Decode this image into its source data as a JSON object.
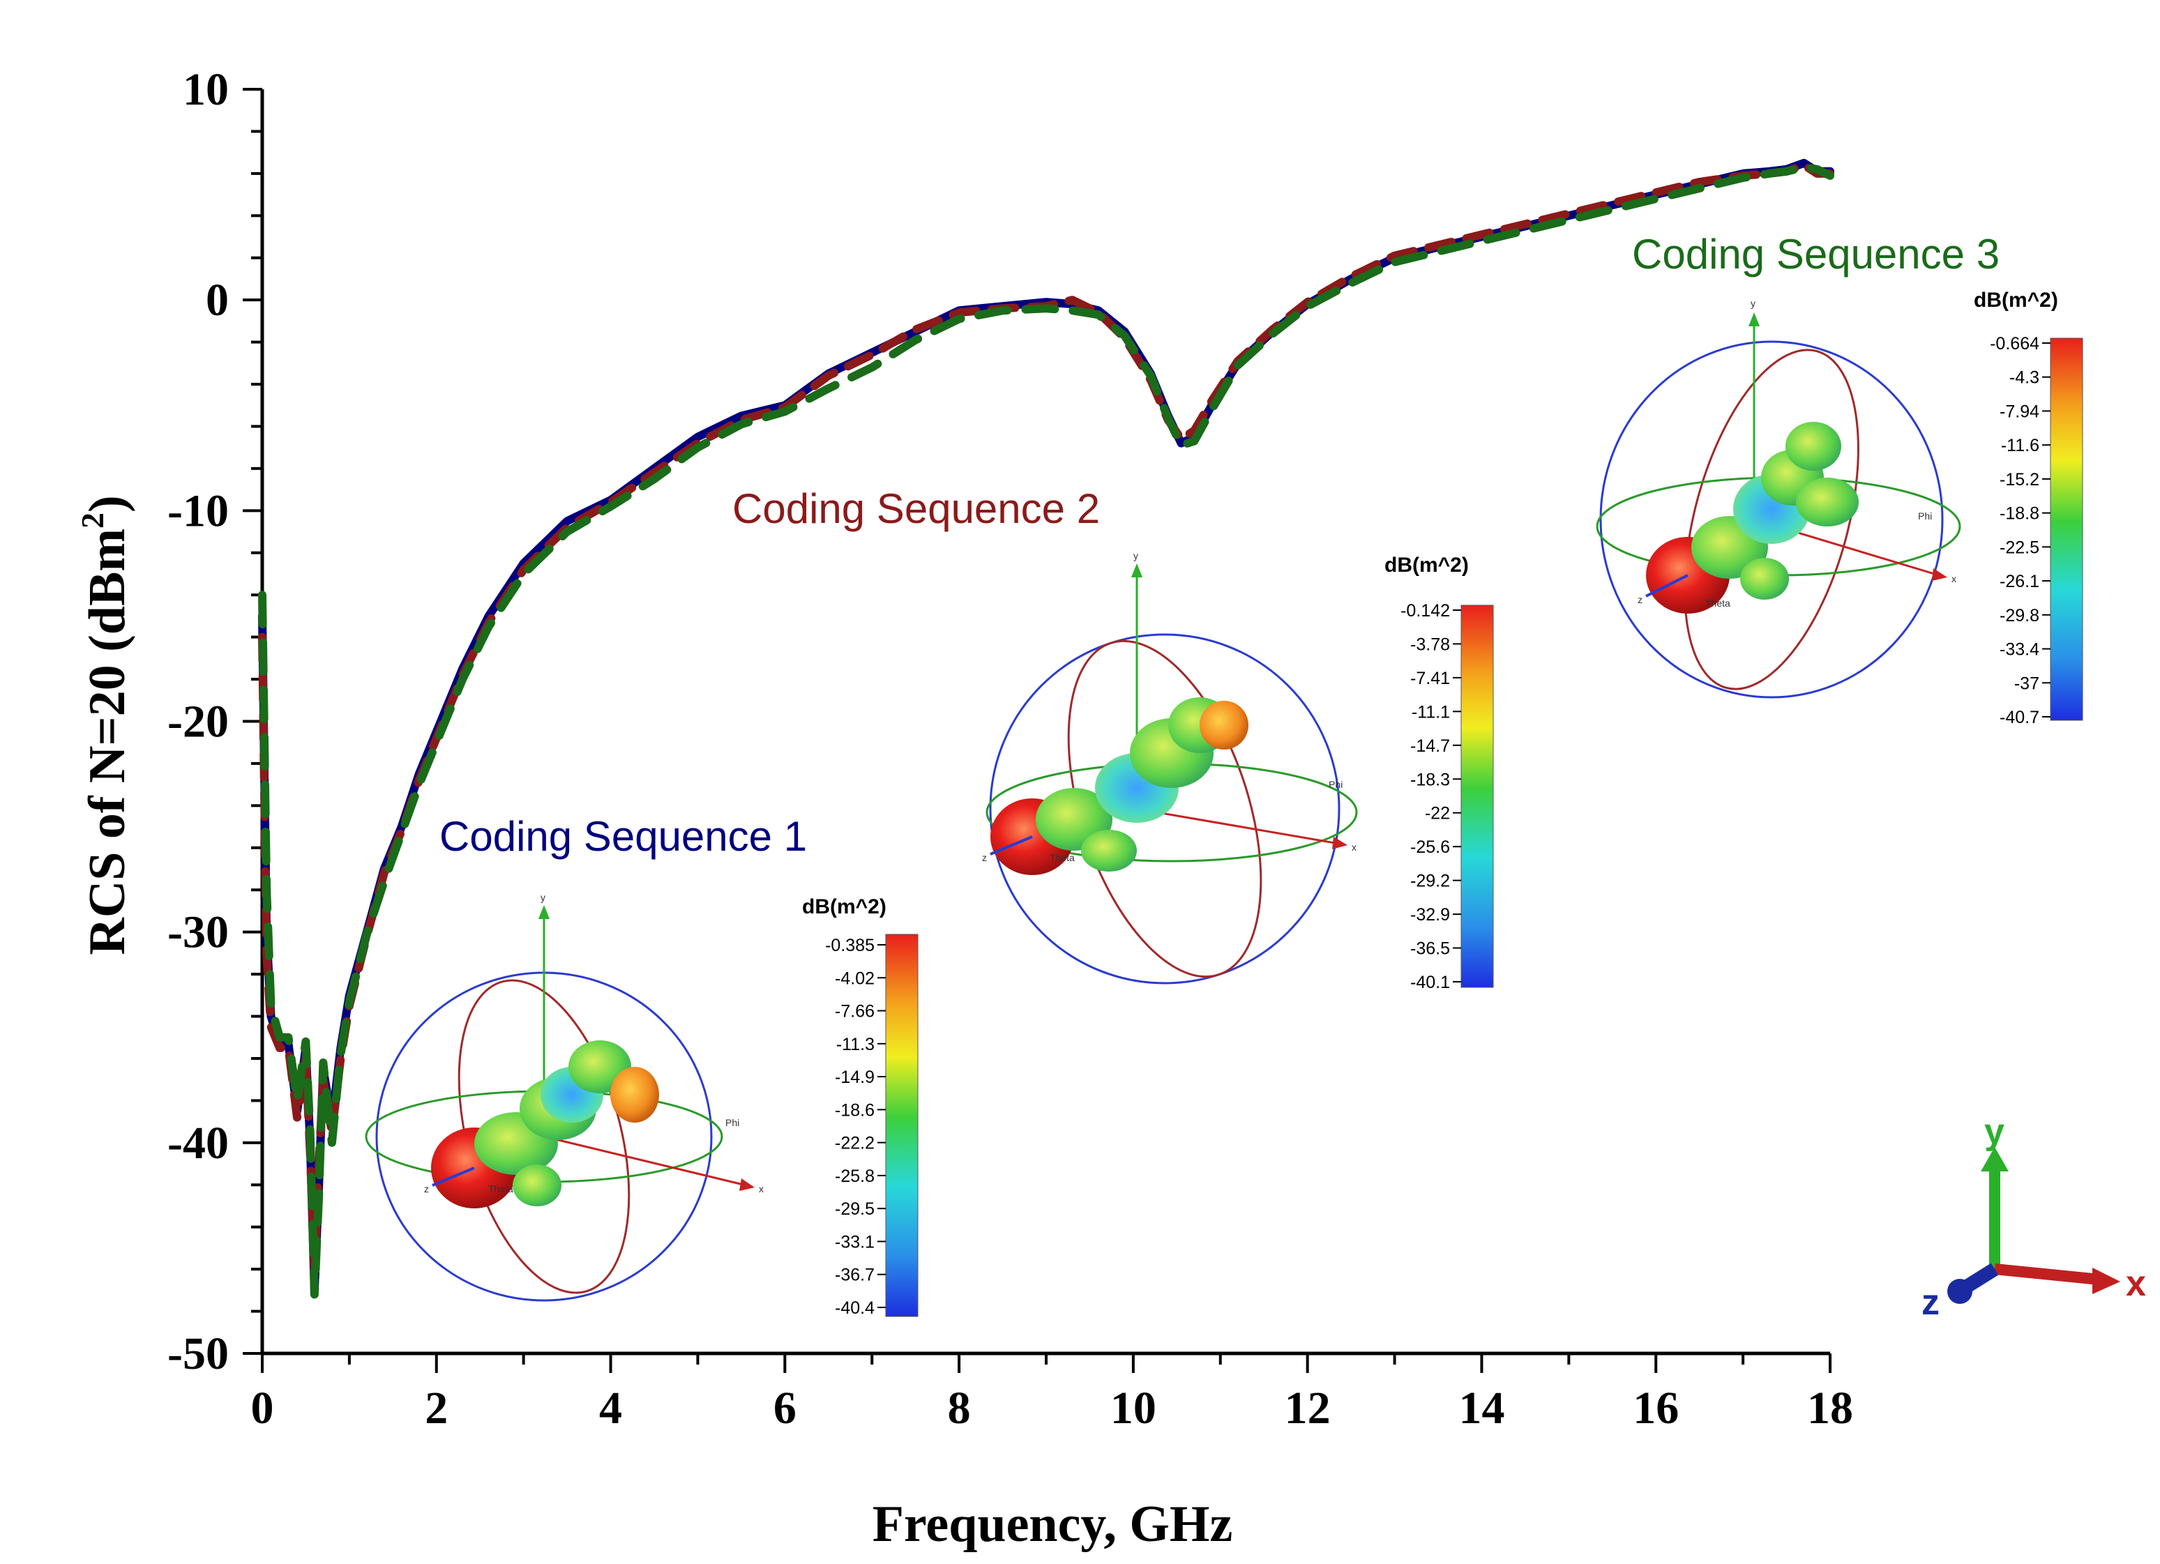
{
  "chart_data": {
    "type": "line",
    "title": "",
    "xlabel": "Frequency, GHz",
    "ylabel_main": "RCS of N=20 (dBm",
    "ylabel_sup": "2",
    "ylabel_tail": ")",
    "xlim": [
      0,
      18
    ],
    "ylim": [
      -50,
      10
    ],
    "xticks": [
      "0",
      "2",
      "4",
      "6",
      "8",
      "10",
      "12",
      "14",
      "16",
      "18"
    ],
    "yticks": [
      "10",
      "0",
      "-10",
      "-20",
      "-30",
      "-40",
      "-50"
    ],
    "grid": false,
    "series": [
      {
        "name": "Coding Sequence 1",
        "color": "#000080",
        "style": "solid",
        "x": [
          0,
          0.05,
          0.1,
          0.2,
          0.3,
          0.4,
          0.5,
          0.55,
          0.6,
          0.65,
          0.7,
          0.8,
          0.9,
          1.0,
          1.2,
          1.4,
          1.6,
          1.8,
          2.0,
          2.3,
          2.6,
          3.0,
          3.5,
          4.0,
          4.5,
          5.0,
          5.5,
          6.0,
          6.5,
          7.0,
          7.5,
          8.0,
          8.5,
          9.0,
          9.3,
          9.6,
          9.9,
          10.2,
          10.4,
          10.55,
          10.7,
          10.9,
          11.2,
          11.6,
          12.0,
          12.5,
          13.0,
          13.5,
          14.0,
          14.5,
          15.0,
          15.5,
          16.0,
          16.5,
          17.0,
          17.3,
          17.5,
          17.7,
          17.85,
          18.0
        ],
        "y": [
          -15,
          -30,
          -34,
          -35.3,
          -35.3,
          -38.5,
          -35.5,
          -40,
          -47,
          -42,
          -36.5,
          -39,
          -35.5,
          -33,
          -30,
          -27,
          -25,
          -22.5,
          -20.5,
          -17.5,
          -15,
          -12.5,
          -10.5,
          -9.5,
          -8,
          -6.5,
          -5.5,
          -5,
          -3.5,
          -2.5,
          -1.5,
          -0.5,
          -0.3,
          -0.1,
          -0.2,
          -0.5,
          -1.5,
          -3.5,
          -5.5,
          -6.8,
          -6.5,
          -5,
          -3,
          -1.5,
          -0.2,
          1,
          2,
          2.5,
          3,
          3.5,
          4,
          4.5,
          5,
          5.5,
          6,
          6.1,
          6.2,
          6.5,
          6.1,
          6.1
        ]
      },
      {
        "name": "Coding Sequence 2",
        "color": "#8b1a1a",
        "style": "dashed",
        "x": [
          0,
          0.05,
          0.1,
          0.2,
          0.3,
          0.4,
          0.5,
          0.55,
          0.6,
          0.65,
          0.7,
          0.8,
          0.9,
          1.0,
          1.2,
          1.4,
          1.6,
          1.8,
          2.0,
          2.3,
          2.6,
          3.0,
          3.5,
          4.0,
          4.5,
          5.0,
          5.5,
          6.0,
          6.5,
          7.0,
          7.5,
          8.0,
          8.5,
          9.0,
          9.3,
          9.6,
          9.9,
          10.2,
          10.4,
          10.55,
          10.7,
          10.9,
          11.2,
          11.6,
          12.0,
          12.5,
          13.0,
          13.5,
          14.0,
          14.5,
          15.0,
          15.5,
          16.0,
          16.5,
          17.0,
          17.3,
          17.5,
          17.7,
          17.85,
          18.0
        ],
        "y": [
          -16,
          -31,
          -34.5,
          -35.5,
          -35.5,
          -38.8,
          -36,
          -40.5,
          -46,
          -41,
          -37,
          -39.5,
          -36,
          -33.5,
          -30.2,
          -27.2,
          -25.2,
          -22.8,
          -20.8,
          -17.8,
          -15.3,
          -12.8,
          -10.8,
          -9.6,
          -8.2,
          -6.8,
          -5.7,
          -5.1,
          -3.6,
          -2.6,
          -1.4,
          -0.6,
          -0.4,
          -0.3,
          0,
          -0.6,
          -1.8,
          -3.8,
          -5.7,
          -6.6,
          -6.2,
          -4.8,
          -2.9,
          -1.4,
          -0.1,
          1.1,
          2.1,
          2.6,
          3.1,
          3.6,
          4.1,
          4.6,
          5.1,
          5.6,
          5.9,
          6.0,
          6.1,
          6.4,
          6.0,
          6.0
        ]
      },
      {
        "name": "Coding Sequence 3",
        "color": "#1a6b1a",
        "style": "dashed",
        "x": [
          0,
          0.05,
          0.1,
          0.2,
          0.3,
          0.4,
          0.5,
          0.55,
          0.6,
          0.65,
          0.7,
          0.8,
          0.9,
          1.0,
          1.2,
          1.4,
          1.6,
          1.8,
          2.0,
          2.3,
          2.6,
          3.0,
          3.5,
          4.0,
          4.5,
          5.0,
          5.5,
          6.0,
          6.5,
          7.0,
          7.5,
          8.0,
          8.5,
          9.0,
          9.3,
          9.6,
          9.9,
          10.2,
          10.4,
          10.55,
          10.7,
          10.9,
          11.2,
          11.6,
          12.0,
          12.5,
          13.0,
          13.5,
          14.0,
          14.5,
          15.0,
          15.5,
          16.0,
          16.5,
          17.0,
          17.3,
          17.5,
          17.7,
          17.85,
          18.0
        ],
        "y": [
          -14,
          -28,
          -33.5,
          -35,
          -35,
          -38,
          -35.2,
          -39.5,
          -47.2,
          -42.5,
          -36.2,
          -40,
          -35.8,
          -33.3,
          -30.1,
          -27.6,
          -25.3,
          -23,
          -21,
          -18,
          -15.5,
          -13,
          -11,
          -9.8,
          -8.5,
          -7,
          -5.9,
          -5.3,
          -4.2,
          -3.2,
          -1.9,
          -0.9,
          -0.5,
          -0.4,
          -0.5,
          -0.7,
          -1.7,
          -3.6,
          -5.6,
          -6.9,
          -6.7,
          -5.2,
          -3.1,
          -1.6,
          -0.3,
          0.8,
          1.8,
          2.3,
          2.8,
          3.3,
          3.8,
          4.3,
          4.8,
          5.3,
          5.8,
          6.0,
          6.1,
          6.3,
          6.2,
          5.9
        ]
      }
    ],
    "annotations": [
      "Coding Sequence 1",
      "Coding Sequence 2",
      "Coding Sequence 3"
    ]
  },
  "insets": [
    {
      "name": "inset-seq1",
      "label": "Coding Sequence 1",
      "color": "#000080",
      "colorbar_title": "dB(m^2)",
      "colorbar_ticks": [
        "-0.385",
        "-4.02",
        "-7.66",
        "-11.3",
        "-14.9",
        "-18.6",
        "-22.2",
        "-25.8",
        "-29.5",
        "-33.1",
        "-36.7",
        "-40.4"
      ],
      "axis_labels": {
        "y": "y",
        "x": "x",
        "z": "z",
        "phi": "Phi",
        "theta": "Theta"
      }
    },
    {
      "name": "inset-seq2",
      "label": "Coding Sequence 2",
      "color": "#8b1a1a",
      "colorbar_title": "dB(m^2)",
      "colorbar_ticks": [
        "-0.142",
        "-3.78",
        "-7.41",
        "-11.1",
        "-14.7",
        "-18.3",
        "-22",
        "-25.6",
        "-29.2",
        "-32.9",
        "-36.5",
        "-40.1"
      ],
      "axis_labels": {
        "y": "y",
        "x": "x",
        "z": "z",
        "phi": "Phi",
        "theta": "Theta"
      }
    },
    {
      "name": "inset-seq3",
      "label": "Coding Sequence 3",
      "color": "#1a6b1a",
      "colorbar_title": "dB(m^2)",
      "colorbar_ticks": [
        "-0.664",
        "-4.3",
        "-7.94",
        "-11.6",
        "-15.2",
        "-18.8",
        "-22.5",
        "-26.1",
        "-29.8",
        "-33.4",
        "-37",
        "-40.7"
      ],
      "axis_labels": {
        "y": "y",
        "x": "x",
        "z": "z",
        "phi": "Phi",
        "theta": "Theta"
      }
    }
  ],
  "triad": {
    "x": "x",
    "y": "y",
    "z": "z"
  }
}
